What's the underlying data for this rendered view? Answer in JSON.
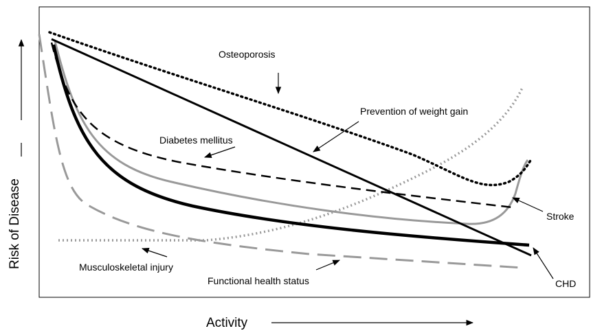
{
  "axes": {
    "y_label": "Risk of Disease",
    "x_label": "Activity"
  },
  "curves": {
    "osteoporosis": "Osteoporosis",
    "weight_gain": "Prevention of weight gain",
    "diabetes": "Diabetes mellitus",
    "stroke": "Stroke",
    "chd": "CHD",
    "musculoskeletal": "Musculoskeletal injury",
    "functional": "Functional health status"
  }
}
